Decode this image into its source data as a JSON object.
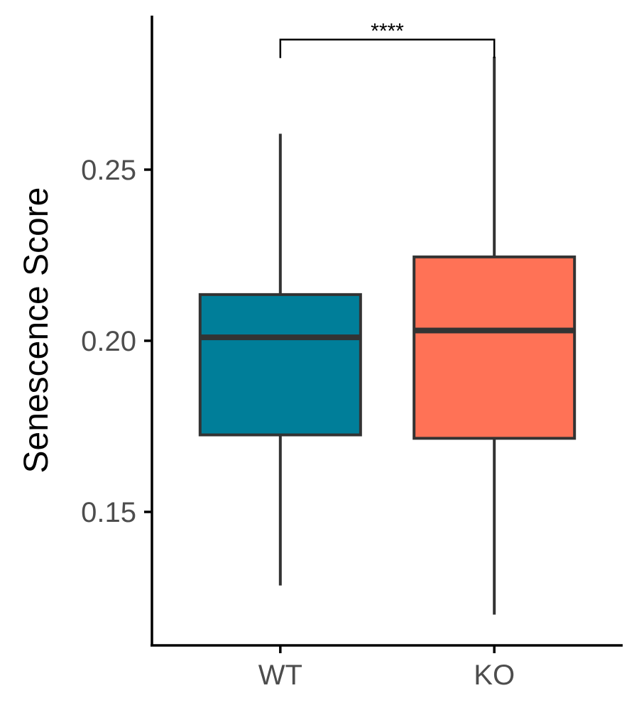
{
  "chart_data": {
    "type": "box",
    "title": "",
    "xlabel": "",
    "ylabel": "Senescence Score",
    "ylim": [
      0.111,
      0.295
    ],
    "yticks": [
      {
        "value": 0.15,
        "label": "0.15"
      },
      {
        "value": 0.2,
        "label": "0.20"
      },
      {
        "value": 0.25,
        "label": "0.25"
      }
    ],
    "categories": [
      "WT",
      "KO"
    ],
    "series": [
      {
        "category": "WT",
        "whisker_low": 0.1285,
        "q1": 0.1725,
        "median": 0.201,
        "q3": 0.2135,
        "whisker_high": 0.2605,
        "color": "#007E99"
      },
      {
        "category": "KO",
        "whisker_low": 0.12,
        "q1": 0.1715,
        "median": 0.203,
        "q3": 0.2245,
        "whisker_high": 0.283,
        "color": "#FF7256"
      }
    ],
    "annotations": [
      {
        "type": "significance",
        "from": "WT",
        "to": "KO",
        "label": "****",
        "y": 0.288
      }
    ],
    "grid": false,
    "legend": "none"
  }
}
